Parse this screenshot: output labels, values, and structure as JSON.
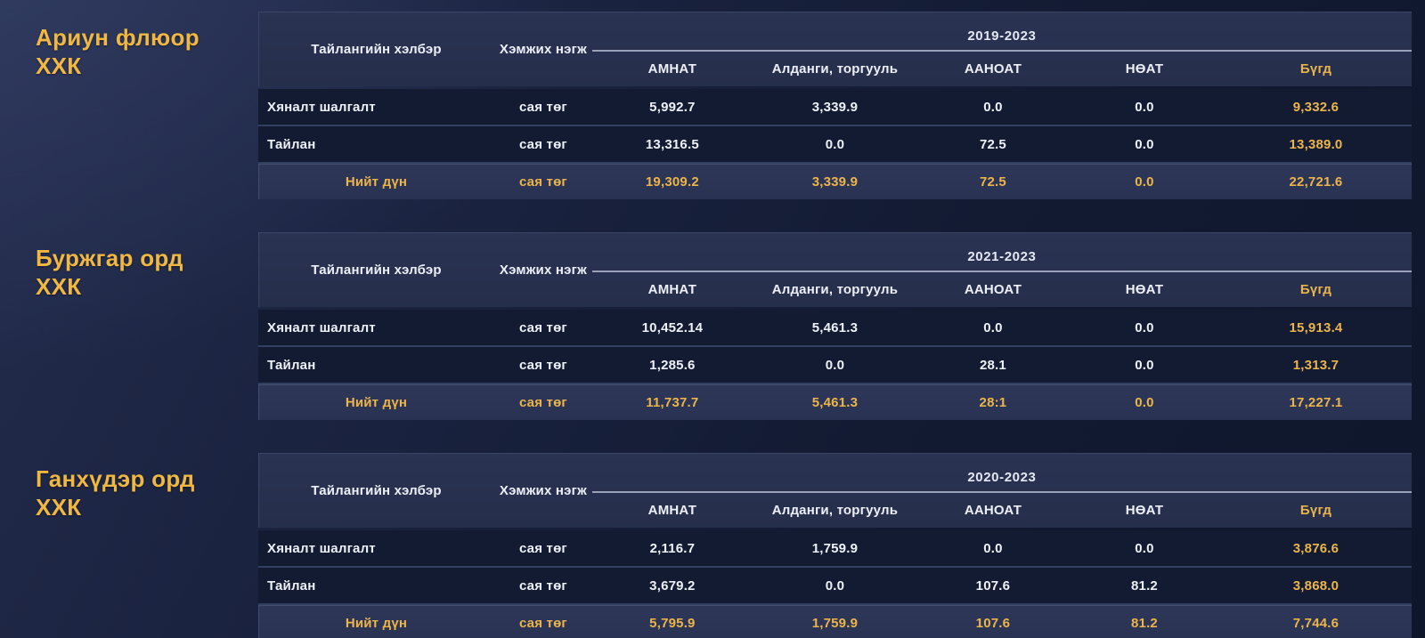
{
  "colors": {
    "background_navy": "#131b32",
    "header_band": "#272f4c",
    "total_row_band": "#2b3454",
    "row_separator": "#333f60",
    "period_underline": "#99a2b8",
    "accent_gold": "#ecb54b",
    "title_gold": "#f0b843",
    "text_white": "#eef1f8"
  },
  "table_headers": {
    "report_type": "Тайлангийн хэлбэр",
    "unit": "Хэмжих нэгж",
    "columns": [
      "АМНАТ",
      "Алданги, торгууль",
      "ААНОАТ",
      "НӨАТ",
      "Бүгд"
    ]
  },
  "sections": [
    {
      "company": "Ариун флюор\nХХК",
      "period": "2019-2023",
      "rows": [
        {
          "label": "Хяналт шалгалт",
          "unit": "сая төг",
          "values": [
            "5,992.7",
            "3,339.9",
            "0.0",
            "0.0",
            "9,332.6"
          ]
        },
        {
          "label": "Тайлан",
          "unit": "сая төг",
          "values": [
            "13,316.5",
            "0.0",
            "72.5",
            "0.0",
            "13,389.0"
          ]
        },
        {
          "label": "Нийт дүн",
          "unit": "сая төг",
          "values": [
            "19,309.2",
            "3,339.9",
            "72.5",
            "0.0",
            "22,721.6"
          ]
        }
      ]
    },
    {
      "company": "Буржгар орд\nХХК",
      "period": "2021-2023",
      "rows": [
        {
          "label": "Хяналт шалгалт",
          "unit": "сая төг",
          "values": [
            "10,452.14",
            "5,461.3",
            "0.0",
            "0.0",
            "15,913.4"
          ]
        },
        {
          "label": "Тайлан",
          "unit": "сая төг",
          "values": [
            "1,285.6",
            "0.0",
            "28.1",
            "0.0",
            "1,313.7"
          ]
        },
        {
          "label": "Нийт дүн",
          "unit": "сая төг",
          "values": [
            "11,737.7",
            "5,461.3",
            "28:1",
            "0.0",
            "17,227.1"
          ]
        }
      ]
    },
    {
      "company": "Ганхүдэр орд\nХХК",
      "period": "2020-2023",
      "rows": [
        {
          "label": "Хяналт шалгалт",
          "unit": "сая төг",
          "values": [
            "2,116.7",
            "1,759.9",
            "0.0",
            "0.0",
            "3,876.6"
          ]
        },
        {
          "label": "Тайлан",
          "unit": "сая төг",
          "values": [
            "3,679.2",
            "0.0",
            "107.6",
            "81.2",
            "3,868.0"
          ]
        },
        {
          "label": "Нийт дүн",
          "unit": "сая төг",
          "values": [
            "5,795.9",
            "1,759.9",
            "107.6",
            "81.2",
            "7,744.6"
          ]
        }
      ]
    }
  ]
}
